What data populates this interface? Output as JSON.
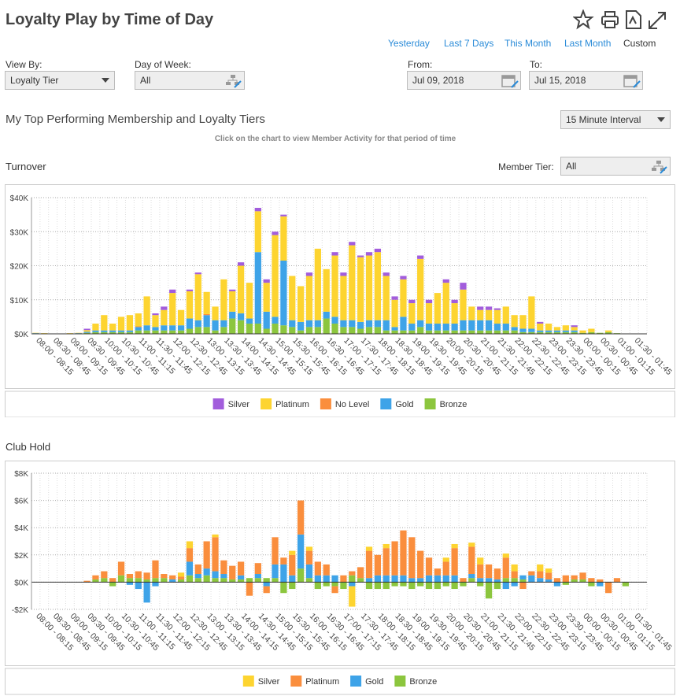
{
  "header": {
    "title": "Loyalty Play by Time of Day",
    "quick_ranges": [
      "Yesterday",
      "Last 7 Days",
      "This Month",
      "Last Month",
      "Custom"
    ]
  },
  "filters": {
    "view_by": {
      "label": "View By:",
      "value": "Loyalty Tier"
    },
    "day_of_week": {
      "label": "Day of Week:",
      "value": "All"
    },
    "from": {
      "label": "From:",
      "value": "Jul 09, 2018"
    },
    "to": {
      "label": "To:",
      "value": "Jul 15, 2018"
    }
  },
  "section": {
    "title": "My Top Performing Membership and Loyalty Tiers",
    "interval": "15 Minute Interval",
    "hint": "Click on the chart to view Member Activity for that period of time",
    "member_tier": {
      "label": "Member Tier:",
      "value": "All"
    }
  },
  "chart_data": [
    {
      "type": "bar",
      "stacked": true,
      "title": "Turnover",
      "grid": true,
      "categories": [
        "08:00 - 08:15",
        null,
        "08:30 - 08:45",
        null,
        "09:00 - 09:15",
        null,
        "09:30 - 09:45",
        null,
        "10:00 - 10:15",
        null,
        "10:30 - 10:45",
        null,
        "11:00 - 11:15",
        null,
        "11:30 - 11:45",
        null,
        "12:00 - 12:15",
        null,
        "12:30 - 12:45",
        null,
        "13:00 - 13:15",
        null,
        "13:30 - 13:45",
        null,
        "14:00 - 14:15",
        null,
        "14:30 - 14:45",
        null,
        "15:00 - 15:15",
        null,
        "15:30 - 15:45",
        null,
        "16:00 - 16:15",
        null,
        "16:30 - 16:45",
        null,
        "17:00 - 17:15",
        null,
        "17:30 - 17:45",
        null,
        "18:00 - 18:15",
        null,
        "18:30 - 18:45",
        null,
        "19:00 - 19:15",
        null,
        "19:30 - 19:45",
        null,
        "20:00 - 20:15",
        null,
        "20:30 - 20:45",
        null,
        "21:00 - 21:15",
        null,
        "21:30 - 21:45",
        null,
        "22:00 - 22:15",
        null,
        "22:30 - 22:45",
        null,
        "23:00 - 23:15",
        null,
        "23:30 - 23:45",
        null,
        "00:00 - 00:15",
        null,
        "00:30 - 00:45",
        null,
        "01:00 - 01:15",
        null,
        "01:30 - 01:45",
        null
      ],
      "ylim": [
        0,
        40000
      ],
      "yticks": [
        {
          "value": 0,
          "label": "$0K"
        },
        {
          "value": 10000,
          "label": "$10K"
        },
        {
          "value": 20000,
          "label": "$20K"
        },
        {
          "value": 30000,
          "label": "$30K"
        },
        {
          "value": 40000,
          "label": "$40K"
        }
      ],
      "series": [
        {
          "name": "Silver",
          "color": "#a25ddc",
          "values": [
            0,
            0,
            0,
            0,
            0,
            0,
            400,
            0,
            0,
            0,
            0,
            0,
            0,
            0,
            500,
            1000,
            1000,
            0,
            500,
            500,
            0,
            0,
            0,
            500,
            1000,
            0,
            1000,
            1000,
            1000,
            500,
            0,
            0,
            1000,
            0,
            0,
            1000,
            1000,
            1000,
            500,
            1000,
            1000,
            1000,
            1000,
            1000,
            1000,
            1000,
            1000,
            0,
            1000,
            1000,
            2000,
            0,
            1000,
            1000,
            500,
            0,
            0,
            0,
            0,
            500,
            0,
            0,
            0,
            500,
            0,
            0,
            0,
            0,
            0,
            0,
            0,
            0
          ]
        },
        {
          "name": "Platinum",
          "color": "#fdd430",
          "values": [
            100,
            100,
            100,
            0,
            100,
            100,
            500,
            2000,
            4500,
            2000,
            4000,
            4500,
            3800,
            8500,
            3500,
            4500,
            9500,
            4500,
            8000,
            13500,
            6500,
            4000,
            12000,
            6000,
            14000,
            10500,
            12000,
            8500,
            24000,
            13000,
            13000,
            10500,
            13000,
            21000,
            12500,
            18000,
            13000,
            22000,
            19000,
            19000,
            20000,
            13000,
            8000,
            11000,
            6000,
            18000,
            6000,
            9000,
            12000,
            6000,
            9000,
            4000,
            3000,
            3000,
            4000,
            5000,
            3500,
            4000,
            9500,
            2000,
            2000,
            1000,
            1500,
            1000,
            700,
            1000,
            0,
            500,
            0,
            0,
            0,
            0
          ]
        },
        {
          "name": "No Level",
          "color": "#fa8e3d",
          "values": [
            0,
            0,
            0,
            0,
            0,
            0,
            0,
            0,
            0,
            0,
            0,
            0,
            200,
            0,
            0,
            0,
            0,
            0,
            0,
            0,
            300,
            0,
            0,
            0,
            0,
            0,
            0,
            0,
            0,
            0,
            0,
            0,
            0,
            0,
            0,
            0,
            0,
            0,
            0,
            0,
            0,
            0,
            0,
            0,
            0,
            0,
            0,
            0,
            0,
            0,
            0,
            0,
            0,
            0,
            0,
            0,
            0,
            0,
            0,
            0,
            0,
            0,
            0,
            0,
            0,
            0,
            0,
            0,
            0,
            0,
            0,
            0
          ]
        },
        {
          "name": "Gold",
          "color": "#3ea3e8",
          "values": [
            100,
            0,
            0,
            0,
            0,
            100,
            300,
            500,
            500,
            500,
            500,
            500,
            1000,
            1500,
            1000,
            1500,
            1500,
            1500,
            3000,
            2000,
            3500,
            3000,
            2000,
            2000,
            2000,
            1500,
            21000,
            5000,
            2000,
            19000,
            2000,
            2500,
            2000,
            2000,
            2000,
            2000,
            2000,
            2000,
            2000,
            2000,
            2000,
            3000,
            1000,
            4000,
            2000,
            2000,
            2000,
            2000,
            2000,
            2000,
            3000,
            3000,
            3000,
            3000,
            2000,
            2000,
            1000,
            1000,
            1000,
            500,
            500,
            500,
            500,
            500,
            0,
            0,
            0,
            0,
            0,
            0,
            0,
            0
          ]
        },
        {
          "name": "Bronze",
          "color": "#8cc63e",
          "values": [
            100,
            100,
            0,
            0,
            100,
            100,
            300,
            500,
            500,
            500,
            500,
            500,
            1000,
            1000,
            1000,
            1000,
            1000,
            1000,
            1500,
            2000,
            2000,
            1000,
            2000,
            4500,
            4000,
            3000,
            3000,
            1500,
            3000,
            2500,
            2000,
            1000,
            2000,
            2000,
            4500,
            3000,
            2000,
            2000,
            1500,
            2000,
            2000,
            1000,
            1000,
            1000,
            1000,
            2000,
            1000,
            1000,
            1000,
            1000,
            1000,
            1000,
            1000,
            1000,
            1000,
            1000,
            1000,
            500,
            500,
            500,
            500,
            500,
            500,
            500,
            300,
            500,
            300,
            500,
            200,
            100,
            0,
            0
          ]
        }
      ]
    },
    {
      "type": "bar",
      "stacked": true,
      "title": "Club Hold",
      "grid": true,
      "categories": [
        "08:00 - 08:15",
        null,
        "08:30 - 08:45",
        null,
        "09:00 - 09:15",
        null,
        "09:30 - 09:45",
        null,
        "10:00 - 10:15",
        null,
        "10:30 - 10:45",
        null,
        "11:00 - 11:15",
        null,
        "11:30 - 11:45",
        null,
        "12:00 - 12:15",
        null,
        "12:30 - 12:45",
        null,
        "13:00 - 13:15",
        null,
        "13:30 - 13:45",
        null,
        "14:00 - 14:15",
        null,
        "14:30 - 14:45",
        null,
        "15:00 - 15:15",
        null,
        "15:30 - 15:45",
        null,
        "16:00 - 16:15",
        null,
        "16:30 - 16:45",
        null,
        "17:00 - 17:15",
        null,
        "17:30 - 17:45",
        null,
        "18:00 - 18:15",
        null,
        "18:30 - 18:45",
        null,
        "19:00 - 19:15",
        null,
        "19:30 - 19:45",
        null,
        "20:00 - 20:15",
        null,
        "20:30 - 20:45",
        null,
        "21:00 - 21:15",
        null,
        "21:30 - 21:45",
        null,
        "22:00 - 22:15",
        null,
        "22:30 - 22:45",
        null,
        "23:00 - 23:15",
        null,
        "23:30 - 23:45",
        null,
        "00:00 - 00:15",
        null,
        "00:30 - 00:45",
        null,
        "01:00 - 01:15",
        null,
        "01:30 - 01:45",
        null
      ],
      "ylim": [
        -2000,
        8000
      ],
      "yticks": [
        {
          "value": -2000,
          "label": "-$2K"
        },
        {
          "value": 0,
          "label": "$0K"
        },
        {
          "value": 2000,
          "label": "$2K"
        },
        {
          "value": 4000,
          "label": "$4K"
        },
        {
          "value": 6000,
          "label": "$6K"
        },
        {
          "value": 8000,
          "label": "$8K"
        }
      ],
      "series": [
        {
          "name": "Silver",
          "color": "#fdd430",
          "values": [
            0,
            0,
            0,
            0,
            0,
            0,
            0,
            0,
            0,
            0,
            0,
            0,
            0,
            0,
            0,
            0,
            0,
            300,
            500,
            0,
            0,
            200,
            0,
            0,
            0,
            0,
            0,
            0,
            0,
            0,
            300,
            0,
            300,
            0,
            0,
            0,
            0,
            -1500,
            0,
            300,
            0,
            300,
            0,
            0,
            0,
            0,
            0,
            0,
            300,
            300,
            0,
            300,
            500,
            0,
            0,
            300,
            500,
            0,
            0,
            500,
            300,
            0,
            0,
            0,
            0,
            0,
            0,
            0,
            0,
            0,
            0,
            0
          ]
        },
        {
          "name": "Platinum",
          "color": "#fa8e3d",
          "values": [
            0,
            0,
            0,
            0,
            0,
            0,
            100,
            300,
            500,
            300,
            1000,
            300,
            500,
            500,
            1300,
            300,
            300,
            200,
            1000,
            700,
            2000,
            2500,
            1000,
            1000,
            1000,
            -1000,
            800,
            -500,
            2000,
            500,
            1500,
            2500,
            1000,
            1000,
            800,
            -500,
            500,
            300,
            800,
            2000,
            1500,
            2000,
            2500,
            3300,
            3000,
            2000,
            1300,
            500,
            1000,
            2000,
            300,
            2000,
            1000,
            1000,
            800,
            1500,
            500,
            -500,
            300,
            500,
            500,
            300,
            500,
            300,
            500,
            300,
            200,
            -800,
            300,
            0,
            0,
            0
          ]
        },
        {
          "name": "Gold",
          "color": "#3ea3e8",
          "values": [
            0,
            0,
            0,
            0,
            0,
            0,
            0,
            0,
            0,
            0,
            0,
            -200,
            -500,
            -1500,
            -300,
            0,
            200,
            0,
            1000,
            300,
            500,
            500,
            300,
            0,
            300,
            0,
            300,
            -300,
            1000,
            1300,
            500,
            2500,
            1000,
            500,
            500,
            500,
            0,
            -300,
            0,
            300,
            500,
            500,
            500,
            500,
            300,
            300,
            500,
            500,
            500,
            500,
            0,
            300,
            300,
            300,
            200,
            -500,
            -300,
            300,
            500,
            300,
            200,
            -300,
            0,
            0,
            0,
            0,
            -300,
            0,
            0,
            0,
            0,
            0
          ]
        },
        {
          "name": "Bronze",
          "color": "#8cc63e",
          "values": [
            0,
            0,
            0,
            0,
            0,
            0,
            0,
            200,
            300,
            -300,
            500,
            300,
            300,
            200,
            300,
            300,
            0,
            200,
            500,
            300,
            500,
            300,
            300,
            200,
            200,
            300,
            300,
            300,
            300,
            -800,
            -500,
            1000,
            300,
            -500,
            -300,
            -300,
            -500,
            500,
            300,
            -500,
            -500,
            -500,
            -300,
            -300,
            -500,
            -300,
            -500,
            -500,
            -300,
            -500,
            -300,
            300,
            -300,
            -1200,
            -500,
            300,
            300,
            200,
            0,
            0,
            0,
            0,
            -200,
            200,
            200,
            -300,
            0,
            0,
            0,
            -300,
            0,
            0
          ]
        }
      ]
    }
  ]
}
